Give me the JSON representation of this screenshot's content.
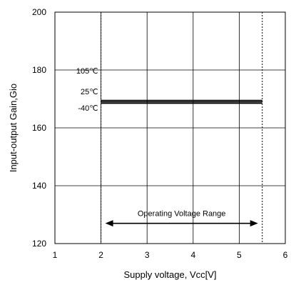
{
  "chart_data": {
    "type": "line",
    "xlabel": "Supply voltage, Vcc[V]",
    "ylabel": "Input-output Gain,Gio",
    "xlim": [
      1,
      6
    ],
    "ylim": [
      120,
      200
    ],
    "x_ticks": [
      1,
      2,
      3,
      4,
      5,
      6
    ],
    "y_ticks": [
      120,
      140,
      160,
      180,
      200
    ],
    "grid": true,
    "series": [
      {
        "name": "105℃",
        "x": [
          2,
          5.5
        ],
        "y": [
          169.5,
          169.5
        ]
      },
      {
        "name": "25℃",
        "x": [
          2,
          5.5
        ],
        "y": [
          169,
          169
        ]
      },
      {
        "name": "-40℃",
        "x": [
          2,
          5.5
        ],
        "y": [
          168.5,
          168.5
        ]
      }
    ],
    "annotations": {
      "operating_range_label": "Operating Voltage Range",
      "operating_range": [
        2,
        5.5
      ],
      "operating_range_y": 127
    }
  }
}
